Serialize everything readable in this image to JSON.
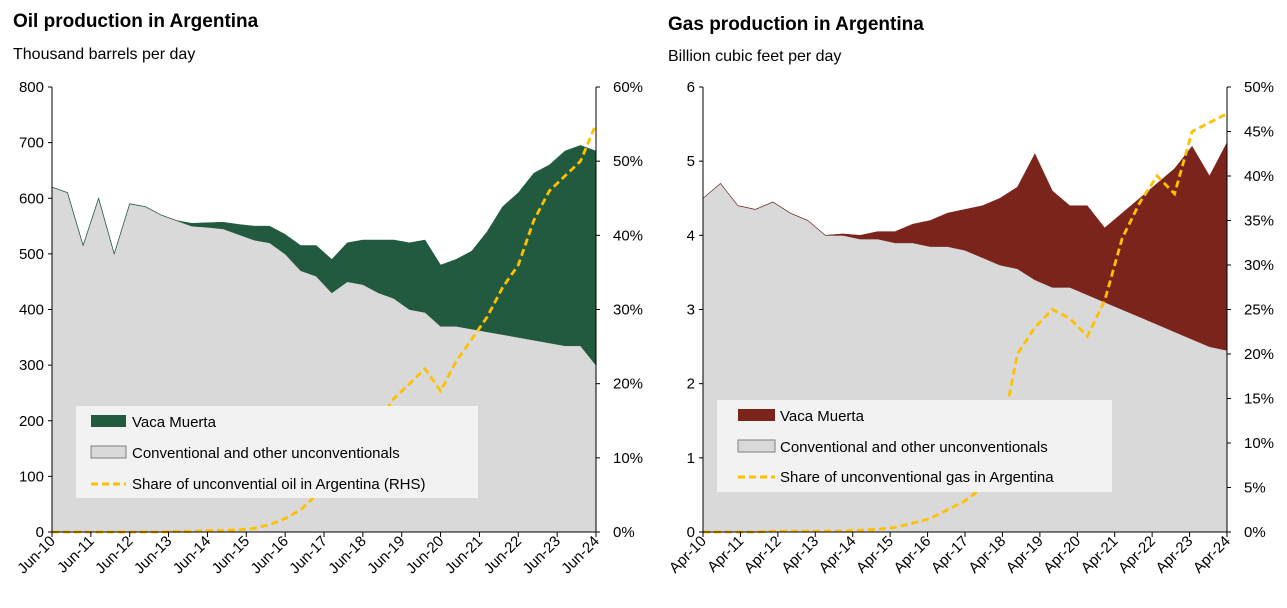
{
  "chart_data": [
    {
      "type": "area",
      "title": "Oil production in Argentina",
      "subtitle": "Thousand barrels per day",
      "x_tick_labels": [
        "Jun-10",
        "Jun-11",
        "Jun-12",
        "Jun-13",
        "Jun-14",
        "Jun-15",
        "Jun-16",
        "Jun-17",
        "Jun-18",
        "Jun-19",
        "Jun-20",
        "Jun-21",
        "Jun-22",
        "Jun-23",
        "Jun-24"
      ],
      "y_left": {
        "min": 0,
        "max": 800,
        "step": 100,
        "ticks": [
          "0",
          "100",
          "200",
          "300",
          "400",
          "500",
          "600",
          "700",
          "800"
        ]
      },
      "y_right": {
        "min": 0,
        "max": 0.6,
        "step": 0.1,
        "ticks": [
          "0%",
          "10%",
          "20%",
          "30%",
          "40%",
          "50%",
          "60%"
        ]
      },
      "x": [
        "Jun-10",
        "Sep-10",
        "Dec-10",
        "Jan-11",
        "Mar-11",
        "Jun-11",
        "Sep-11",
        "Dec-11",
        "Jun-12",
        "Dec-12",
        "Jun-13",
        "Dec-13",
        "Jun-14",
        "Dec-14",
        "Jun-15",
        "Dec-15",
        "Jun-16",
        "Dec-16",
        "Jun-17",
        "Dec-17",
        "Jun-18",
        "Dec-18",
        "Jun-19",
        "Dec-19",
        "Mar-20",
        "Jun-20",
        "Dec-20",
        "Jun-21",
        "Dec-21",
        "Jun-22",
        "Dec-22",
        "Jun-23",
        "Dec-23",
        "Mar-24",
        "May-24",
        "Jun-24"
      ],
      "series": [
        {
          "name": "Conventional and other unconventionals",
          "role": "area",
          "color": "#d9d9d9",
          "values": [
            620,
            610,
            515,
            600,
            500,
            590,
            585,
            570,
            560,
            550,
            548,
            545,
            535,
            525,
            520,
            500,
            470,
            460,
            430,
            450,
            445,
            430,
            420,
            400,
            395,
            370,
            370,
            365,
            360,
            355,
            350,
            345,
            340,
            335,
            335,
            300
          ]
        },
        {
          "name": "Vaca Muerta",
          "role": "area",
          "color": "#215a3e",
          "values": [
            0,
            0,
            0,
            0,
            0,
            0,
            0,
            0,
            0,
            5,
            8,
            12,
            18,
            25,
            30,
            35,
            45,
            55,
            60,
            70,
            80,
            95,
            105,
            120,
            130,
            110,
            120,
            140,
            180,
            230,
            260,
            300,
            320,
            350,
            360,
            385
          ]
        },
        {
          "name": "Share of unconvential oil in Argentina (RHS)",
          "role": "line",
          "color": "#ffc000",
          "values": [
            0,
            0,
            0,
            0,
            0,
            0,
            0,
            0,
            0.001,
            0.001,
            0.002,
            0.002,
            0.003,
            0.005,
            0.01,
            0.018,
            0.03,
            0.05,
            0.07,
            0.09,
            0.12,
            0.15,
            0.18,
            0.2,
            0.22,
            0.19,
            0.23,
            0.26,
            0.29,
            0.33,
            0.36,
            0.42,
            0.46,
            0.48,
            0.5,
            0.55
          ]
        }
      ]
    },
    {
      "type": "area",
      "title": "Gas production in Argentina",
      "subtitle": "Billion cubic feet per day",
      "x_tick_labels": [
        "Apr-10",
        "Apr-11",
        "Apr-12",
        "Apr-13",
        "Apr-14",
        "Apr-15",
        "Apr-16",
        "Apr-17",
        "Apr-18",
        "Apr-19",
        "Apr-20",
        "Apr-21",
        "Apr-22",
        "Apr-23",
        "Apr-24"
      ],
      "y_left": {
        "min": 0,
        "max": 6,
        "step": 1,
        "ticks": [
          "0",
          "1",
          "2",
          "3",
          "4",
          "5",
          "6"
        ]
      },
      "y_right": {
        "min": 0,
        "max": 0.5,
        "step": 0.05,
        "ticks": [
          "0%",
          "5%",
          "10%",
          "15%",
          "20%",
          "25%",
          "30%",
          "35%",
          "40%",
          "45%",
          "50%"
        ]
      },
      "x": [
        "Apr-10",
        "Jul-10",
        "Oct-10",
        "Apr-11",
        "Oct-11",
        "Apr-12",
        "Oct-12",
        "Apr-13",
        "Oct-13",
        "Apr-14",
        "Oct-14",
        "Apr-15",
        "Oct-15",
        "Apr-16",
        "Oct-16",
        "Apr-17",
        "Oct-17",
        "Apr-18",
        "Oct-18",
        "Apr-19",
        "Oct-19",
        "Apr-20",
        "Oct-20",
        "Apr-21",
        "Oct-21",
        "Apr-22",
        "Oct-22",
        "Apr-23",
        "Oct-23",
        "Apr-24",
        "Jul-24"
      ],
      "series": [
        {
          "name": "Conventional and other unconventionals",
          "role": "area",
          "color": "#d9d9d9",
          "values": [
            4.5,
            4.7,
            4.4,
            4.35,
            4.45,
            4.3,
            4.2,
            4.0,
            4.0,
            3.95,
            3.95,
            3.9,
            3.9,
            3.85,
            3.85,
            3.8,
            3.7,
            3.6,
            3.55,
            3.4,
            3.3,
            3.3,
            3.2,
            3.1,
            3.0,
            2.9,
            2.8,
            2.7,
            2.6,
            2.5,
            2.45
          ]
        },
        {
          "name": "Vaca Muerta",
          "role": "area",
          "color": "#7b241c",
          "values": [
            0,
            0,
            0,
            0,
            0,
            0,
            0,
            0,
            0.02,
            0.05,
            0.1,
            0.15,
            0.25,
            0.35,
            0.45,
            0.55,
            0.7,
            0.9,
            1.1,
            1.7,
            1.3,
            1.1,
            1.2,
            1.0,
            1.3,
            1.6,
            1.9,
            2.2,
            2.6,
            2.3,
            2.8
          ]
        },
        {
          "name": "Share of unconventional gas in Argentina",
          "role": "line",
          "color": "#ffc000",
          "values": [
            0,
            0,
            0,
            0,
            0.001,
            0.001,
            0.001,
            0.001,
            0.001,
            0.002,
            0.003,
            0.005,
            0.01,
            0.015,
            0.025,
            0.035,
            0.05,
            0.1,
            0.2,
            0.23,
            0.25,
            0.24,
            0.22,
            0.26,
            0.33,
            0.37,
            0.4,
            0.38,
            0.45,
            0.46,
            0.47
          ]
        }
      ]
    }
  ]
}
